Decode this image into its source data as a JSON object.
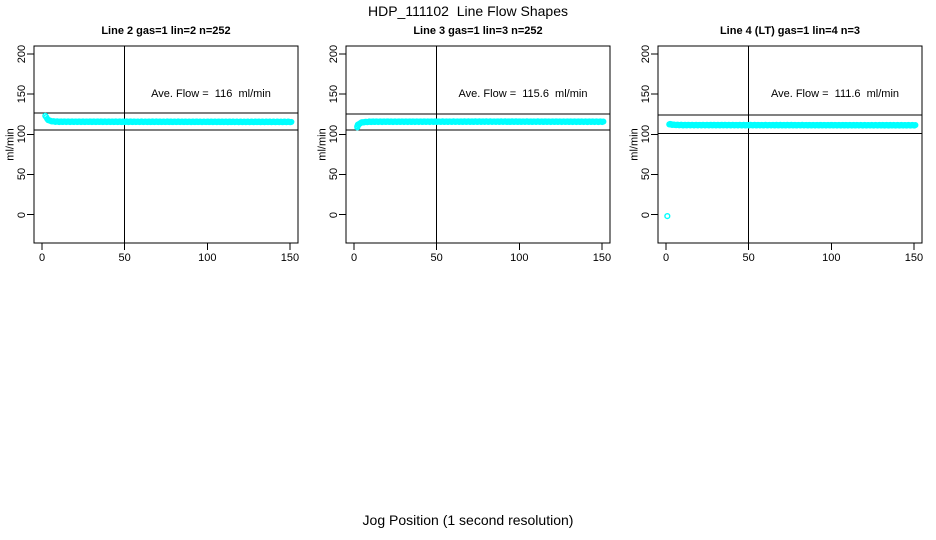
{
  "figure": {
    "title": "HDP_111102  Line Flow Shapes",
    "xlabel": "Jog Position (1 second resolution)"
  },
  "style": {
    "point_color": "#00ffff",
    "line_color": "#000000",
    "background": "#ffffff"
  },
  "axes": {
    "ylabel": "ml/min",
    "xlim": [
      0,
      150
    ],
    "ylim": [
      0,
      200
    ],
    "x_ticks": [
      0,
      50,
      100,
      150
    ],
    "y_ticks": [
      0,
      50,
      100,
      150,
      200
    ]
  },
  "chart_data": [
    {
      "type": "scatter",
      "title": "Line 2 gas=1 lin=2 n=252",
      "annotation": "Ave. Flow =  116  ml/min",
      "ave_flow": 116,
      "n": 252,
      "ylabel": "ml/min",
      "xlim": [
        0,
        150
      ],
      "x_ticks": [
        0,
        50,
        100,
        150
      ],
      "y_ticks": [
        0,
        50,
        100,
        150,
        200
      ],
      "hlines": [
        126.5,
        105
      ],
      "vline_x": 50,
      "x_range": [
        2,
        151
      ],
      "x_step": 0.6,
      "profile": [
        [
          2,
          123
        ],
        [
          3,
          119.5
        ],
        [
          4,
          117.5
        ],
        [
          5,
          116.6
        ],
        [
          7,
          115.9
        ],
        [
          10,
          115.6
        ],
        [
          80,
          115.5
        ],
        [
          150,
          115.4
        ],
        [
          151,
          115.1
        ]
      ],
      "extra_points": []
    },
    {
      "type": "scatter",
      "title": "Line 3 gas=1 lin=3 n=252",
      "annotation": "Ave. Flow =  115.6  ml/min",
      "ave_flow": 115.6,
      "n": 252,
      "ylabel": "ml/min",
      "xlim": [
        0,
        150
      ],
      "x_ticks": [
        0,
        50,
        100,
        150
      ],
      "y_ticks": [
        0,
        50,
        100,
        150,
        200
      ],
      "hlines": [
        125.5,
        105
      ],
      "vline_x": 50,
      "x_range": [
        2,
        151
      ],
      "x_step": 0.6,
      "profile": [
        [
          2,
          108.5
        ],
        [
          2.6,
          111
        ],
        [
          3.2,
          113
        ],
        [
          4,
          114.3
        ],
        [
          6,
          115.1
        ],
        [
          10,
          115.6
        ],
        [
          80,
          115.7
        ],
        [
          151,
          115.6
        ]
      ],
      "extra_points": [
        [
          2,
          110
        ],
        [
          2.4,
          112
        ]
      ]
    },
    {
      "type": "scatter",
      "title": "Line 4 (LT) gas=1 lin=4 n=3",
      "annotation": "Ave. Flow =  111.6  ml/min",
      "ave_flow": 111.6,
      "n": 3,
      "ylabel": "ml/min",
      "xlim": [
        0,
        150
      ],
      "x_ticks": [
        0,
        50,
        100,
        150
      ],
      "y_ticks": [
        0,
        50,
        100,
        150,
        200
      ],
      "hlines": [
        124,
        101
      ],
      "vline_x": 50,
      "x_range": [
        2,
        151
      ],
      "x_step": 0.6,
      "profile": [
        [
          2,
          112.3
        ],
        [
          3,
          112.1
        ],
        [
          5,
          111.7
        ],
        [
          10,
          111.4
        ],
        [
          80,
          111.3
        ],
        [
          151,
          111.2
        ]
      ],
      "extra_points": [
        [
          0.8,
          -2
        ],
        [
          2.5,
          112.8
        ],
        [
          3.5,
          112.4
        ]
      ]
    }
  ]
}
